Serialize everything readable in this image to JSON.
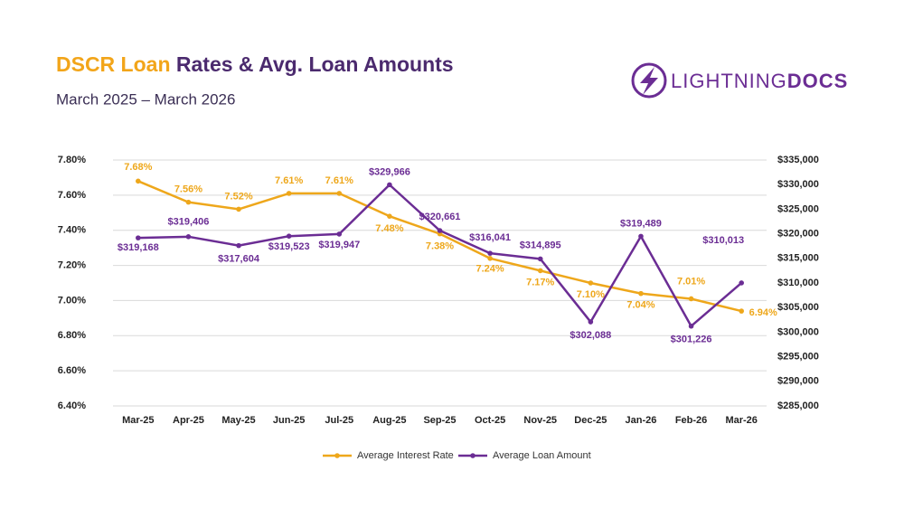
{
  "chart_data": {
    "type": "line",
    "title": [
      "DSCR Loan",
      "Rates & Avg. Loan Amounts"
    ],
    "subtitle": "March 2025 – March 2026",
    "logo": [
      "LIGHTNING",
      "DOCS"
    ],
    "categories": [
      "Mar-25",
      "Apr-25",
      "May-25",
      "Jun-25",
      "Jul-25",
      "Aug-25",
      "Sep-25",
      "Oct-25",
      "Nov-25",
      "Dec-25",
      "Jan-26",
      "Feb-26",
      "Mar-26"
    ],
    "series": [
      {
        "name": "Average Interest Rate",
        "color": "#eea71b",
        "values": [
          7.68,
          7.56,
          7.52,
          7.61,
          7.61,
          7.48,
          7.38,
          7.24,
          7.17,
          7.1,
          7.04,
          7.01,
          6.94
        ],
        "value_labels": [
          "7.68%",
          "7.56%",
          "7.52%",
          "7.61%",
          "7.61%",
          "7.48%",
          "7.38%",
          "7.24%",
          "7.17%",
          "7.10%",
          "7.04%",
          "7.01%",
          "6.94%"
        ]
      },
      {
        "name": "Average Loan Amount",
        "color": "#6b2d94",
        "axis": "y2",
        "values": [
          319168,
          319406,
          317604,
          319523,
          319947,
          329966,
          320661,
          316041,
          314895,
          302088,
          319489,
          301226,
          310013
        ],
        "value_labels": [
          "$319,168",
          "$319,406",
          "$317,604",
          "$319,523",
          "$319,947",
          "$329,966",
          "$320,661",
          "$316,041",
          "$314,895",
          "$302,088",
          "$319,489",
          "$301,226",
          "$310,013"
        ]
      }
    ],
    "ylim": [
      6.4,
      7.8
    ],
    "yticks": [
      {
        "value": 6.4,
        "label": "6.40%"
      },
      {
        "value": 6.6,
        "label": "6.60%"
      },
      {
        "value": 6.8,
        "label": "6.80%"
      },
      {
        "value": 7.0,
        "label": "7.00%"
      },
      {
        "value": 7.2,
        "label": "7.20%"
      },
      {
        "value": 7.4,
        "label": "7.40%"
      },
      {
        "value": 7.6,
        "label": "7.60%"
      },
      {
        "value": 7.8,
        "label": "7.80%"
      }
    ],
    "y2lim": [
      285000,
      335000
    ],
    "y2ticks": [
      {
        "value": 285000,
        "label": "$285,000"
      },
      {
        "value": 290000,
        "label": "$290,000"
      },
      {
        "value": 295000,
        "label": "$295,000"
      },
      {
        "value": 300000,
        "label": "$300,000"
      },
      {
        "value": 305000,
        "label": "$305,000"
      },
      {
        "value": 310000,
        "label": "$310,000"
      },
      {
        "value": 315000,
        "label": "$315,000"
      },
      {
        "value": 320000,
        "label": "$320,000"
      },
      {
        "value": 325000,
        "label": "$325,000"
      },
      {
        "value": 330000,
        "label": "$330,000"
      },
      {
        "value": 335000,
        "label": "$335,000"
      }
    ],
    "grid": true,
    "legend": "bottom"
  }
}
